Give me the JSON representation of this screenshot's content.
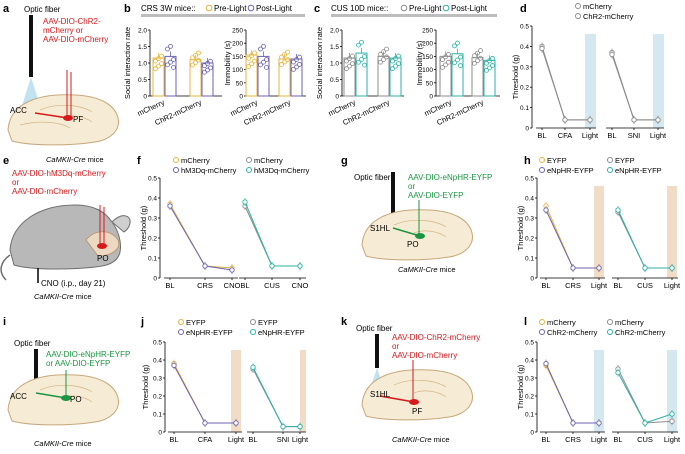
{
  "colors": {
    "yellow": "#E8B43A",
    "purple": "#6B63B5",
    "teal": "#2BB3A6",
    "gray": "#8C8C8C",
    "red": "#D7191C",
    "green": "#1A9641",
    "blue_band": "#D5E8F0",
    "orange_band": "#F1DCC8"
  },
  "panels": {
    "a": {
      "label": "a",
      "fiber": "Optic fiber",
      "virus1": "AAV-DIO-ChR2-",
      "virus2": "mCherry or",
      "virus3": "AAV-DIO-mCherry",
      "region1": "ACC",
      "region2": "PF",
      "mouse": "CaMKII-Cre",
      "mice": " mice"
    },
    "b": {
      "label": "b",
      "title": "CRS 3W mice::",
      "leg_pre": "Pre-Light",
      "leg_post": "Post-Light"
    },
    "c": {
      "label": "c",
      "title": "CUS 10D mice::",
      "leg_pre": "Pre-Light",
      "leg_post": "Post-Light"
    },
    "d": {
      "label": "d",
      "leg1": "mCherry",
      "leg2": "ChR2-mCherry"
    },
    "e": {
      "label": "e",
      "virus1": "AAV-DIO-hM3Dq-mCherry",
      "virus2": "or",
      "virus3": "AAV-DIO-mCherry",
      "region": "PO",
      "cno": "CNO (i.p., day 21)",
      "mouse": "CaMKII-Cre",
      "mice": " mice"
    },
    "f": {
      "label": "f",
      "leg1": "mCherry",
      "leg2": "hM3Dq-mCherry",
      "leg3": "mCherry",
      "leg4": "hM3Dq-mCherry"
    },
    "g": {
      "label": "g",
      "fiber": "Optic fiber",
      "virus1": "AAV-DIO-eNpHR-EYFP",
      "virus2": "or",
      "virus3": "AAV-DIO-EYFP",
      "region1": "S1HL",
      "region2": "PO",
      "mouse": "CaMKII-Cre",
      "mice": " mice"
    },
    "h": {
      "label": "h",
      "leg1": "EYFP",
      "leg2": "eNpHR-EYFP",
      "leg3": "EYFP",
      "leg4": "eNpHR-EYFP"
    },
    "i": {
      "label": "i",
      "fiber": "Optic fiber",
      "virus1": "AAV-DIO-eNpHR-EYFP",
      "virus2": "or AAV-DIO-EYFP",
      "region1": "ACC",
      "region2": "PO",
      "mouse": "CaMKII-Cre",
      "mice": " mice"
    },
    "j": {
      "label": "j",
      "leg1": "EYFP",
      "leg2": "eNpHR-EYFP",
      "leg3": "EYFP",
      "leg4": "eNpHR-EYFP"
    },
    "k": {
      "label": "k",
      "fiber": "Optic fiber",
      "virus1": "AAV-DIO-ChR2-mCherry",
      "virus2": "or",
      "virus3": "AAV-DIO-mCherry",
      "region1": "S1HL",
      "region2": "PF",
      "mouse": "CaMKII-Cre",
      "mice": " mice"
    },
    "l": {
      "label": "l",
      "leg1": "mCherry",
      "leg2": "ChR2-mCherry",
      "leg3": "mCherry",
      "leg4": "ChR2-mCherry"
    }
  },
  "chart_data": [
    {
      "id": "b1",
      "type": "bar",
      "panel": "b",
      "ylabel": "Social interaction rate",
      "ylim": [
        0,
        2
      ],
      "yticks": [
        "0",
        "0.5",
        "1.0",
        "1.5",
        "2.0"
      ],
      "categories": [
        "mCherry",
        "ChR2-mCherry"
      ],
      "series": [
        {
          "name": "Pre-Light",
          "values": [
            1.15,
            1.1
          ]
        },
        {
          "name": "Post-Light",
          "values": [
            1.2,
            1.0
          ]
        }
      ]
    },
    {
      "id": "b2",
      "type": "bar",
      "panel": "b",
      "ylabel": "Immobility (s)",
      "ylim": [
        0,
        250
      ],
      "yticks": [
        "0",
        "50",
        "100",
        "150",
        "200",
        "250"
      ],
      "categories": [
        "mCherry",
        "ChR2-mCherry"
      ],
      "series": [
        {
          "name": "Pre-Light",
          "values": [
            155,
            140
          ]
        },
        {
          "name": "Post-Light",
          "values": [
            150,
            140
          ]
        }
      ]
    },
    {
      "id": "c1",
      "type": "bar",
      "panel": "c",
      "ylabel": "Social interaction rate",
      "ylim": [
        0,
        2
      ],
      "yticks": [
        "0",
        "0.5",
        "1.0",
        "1.5",
        "2.0"
      ],
      "categories": [
        "mCherry",
        "ChR2-mCherry"
      ],
      "series": [
        {
          "name": "Pre-Light",
          "values": [
            1.15,
            1.2
          ]
        },
        {
          "name": "Post-Light",
          "values": [
            1.3,
            1.15
          ]
        }
      ]
    },
    {
      "id": "c2",
      "type": "bar",
      "panel": "c",
      "ylabel": "Immobility (s)",
      "ylim": [
        0,
        250
      ],
      "yticks": [
        "0",
        "50",
        "100",
        "150",
        "200",
        "250"
      ],
      "categories": [
        "mCherry",
        "ChR2-mCherry"
      ],
      "series": [
        {
          "name": "Pre-Light",
          "values": [
            150,
            145
          ]
        },
        {
          "name": "Post-Light",
          "values": [
            160,
            135
          ]
        }
      ]
    },
    {
      "id": "d",
      "type": "line",
      "panel": "d",
      "ylabel": "Threshold (g)",
      "ylim": [
        0,
        0.5
      ],
      "yticks": [
        "0",
        "0.1",
        "0.2",
        "0.3",
        "0.4",
        "0.5"
      ],
      "groups": [
        {
          "x": [
            "BL",
            "CFA",
            "Light"
          ],
          "series": [
            {
              "name": "mCherry",
              "values": [
                0.4,
                0.04,
                0.04
              ]
            },
            {
              "name": "ChR2-mCherry",
              "values": [
                0.39,
                0.04,
                0.04
              ]
            }
          ]
        },
        {
          "x": [
            "BL",
            "SNI",
            "Light"
          ],
          "series": [
            {
              "name": "mCherry",
              "values": [
                0.37,
                0.04,
                0.04
              ]
            },
            {
              "name": "ChR2-mCherry",
              "values": [
                0.36,
                0.04,
                0.04
              ]
            }
          ]
        }
      ]
    },
    {
      "id": "f",
      "type": "line",
      "panel": "f",
      "ylabel": "Threshold (g)",
      "ylim": [
        0,
        0.5
      ],
      "yticks": [
        "0",
        "0.1",
        "0.2",
        "0.3",
        "0.4",
        "0.5"
      ],
      "groups": [
        {
          "x": [
            "BL",
            "CRS",
            "CNO"
          ],
          "series": [
            {
              "name": "mCherry",
              "values": [
                0.37,
                0.06,
                0.05
              ]
            },
            {
              "name": "hM3Dq-mCherry",
              "values": [
                0.36,
                0.06,
                0.04
              ]
            }
          ]
        },
        {
          "x": [
            "BL",
            "CUS",
            "CNO"
          ],
          "series": [
            {
              "name": "mCherry",
              "values": [
                0.36,
                0.06,
                0.06
              ]
            },
            {
              "name": "hM3Dq-mCherry",
              "values": [
                0.38,
                0.06,
                0.06
              ]
            }
          ]
        }
      ]
    },
    {
      "id": "h",
      "type": "line",
      "panel": "h",
      "ylabel": "Threshold (g)",
      "ylim": [
        0,
        0.5
      ],
      "yticks": [
        "0",
        "0.1",
        "0.2",
        "0.3",
        "0.4",
        "0.5"
      ],
      "groups": [
        {
          "x": [
            "BL",
            "CRS",
            "Light"
          ],
          "series": [
            {
              "name": "EYFP",
              "values": [
                0.36,
                0.05,
                0.05
              ]
            },
            {
              "name": "eNpHR-EYFP",
              "values": [
                0.34,
                0.05,
                0.05
              ]
            }
          ]
        },
        {
          "x": [
            "BL",
            "CUS",
            "Light"
          ],
          "series": [
            {
              "name": "EYFP",
              "values": [
                0.33,
                0.05,
                0.05
              ]
            },
            {
              "name": "eNpHR-EYFP",
              "values": [
                0.34,
                0.05,
                0.05
              ]
            }
          ]
        }
      ]
    },
    {
      "id": "j",
      "type": "line",
      "panel": "j",
      "ylabel": "Threshold (g)",
      "ylim": [
        0,
        0.5
      ],
      "yticks": [
        "0",
        "0.1",
        "0.2",
        "0.3",
        "0.4",
        "0.5"
      ],
      "groups": [
        {
          "x": [
            "BL",
            "CFA",
            "Light"
          ],
          "series": [
            {
              "name": "EYFP",
              "values": [
                0.38,
                0.05,
                0.05
              ]
            },
            {
              "name": "eNpHR-EYFP",
              "values": [
                0.37,
                0.05,
                0.05
              ]
            }
          ]
        },
        {
          "x": [
            "BL",
            "SNI",
            "Light"
          ],
          "series": [
            {
              "name": "EYFP",
              "values": [
                0.35,
                0.03,
                0.03
              ]
            },
            {
              "name": "eNpHR-EYFP",
              "values": [
                0.36,
                0.03,
                0.03
              ]
            }
          ]
        }
      ]
    },
    {
      "id": "l",
      "type": "line",
      "panel": "l",
      "ylabel": "Threshold (g)",
      "ylim": [
        0,
        0.5
      ],
      "yticks": [
        "0",
        "0.1",
        "0.2",
        "0.3",
        "0.4",
        "0.5"
      ],
      "groups": [
        {
          "x": [
            "BL",
            "CRS",
            "Light"
          ],
          "series": [
            {
              "name": "mCherry",
              "values": [
                0.37,
                0.05,
                0.05
              ]
            },
            {
              "name": "ChR2-mCherry",
              "values": [
                0.38,
                0.05,
                0.05
              ]
            }
          ]
        },
        {
          "x": [
            "BL",
            "CUS",
            "Light"
          ],
          "series": [
            {
              "name": "mCherry",
              "values": [
                0.35,
                0.05,
                0.06
              ]
            },
            {
              "name": "ChR2-mCherry",
              "values": [
                0.33,
                0.05,
                0.1
              ]
            }
          ]
        }
      ]
    }
  ]
}
